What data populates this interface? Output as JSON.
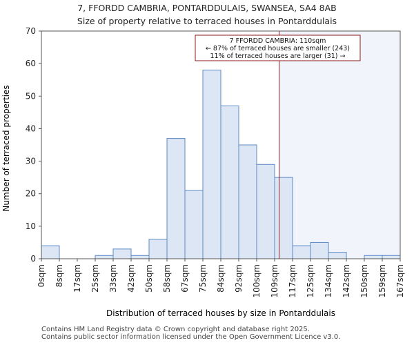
{
  "header": {
    "title": "7, FFORDD CAMBRIA, PONTARDDULAIS, SWANSEA, SA4 8AB",
    "subtitle": "Size of property relative to terraced houses in Pontarddulais"
  },
  "footer": {
    "line1": "Contains HM Land Registry data © Crown copyright and database right 2025.",
    "line2": "Contains public sector information licensed under the Open Government Licence v3.0."
  },
  "chart_data": {
    "type": "bar",
    "title": "7, FFORDD CAMBRIA, PONTARDDULAIS, SWANSEA, SA4 8AB",
    "subtitle": "Size of property relative to terraced houses in Pontarddulais",
    "xlabel": "Distribution of terraced houses by size in Pontarddulais",
    "ylabel": "Number of terraced properties",
    "bin_edges": [
      "0sqm",
      "8sqm",
      "17sqm",
      "25sqm",
      "33sqm",
      "42sqm",
      "50sqm",
      "58sqm",
      "67sqm",
      "75sqm",
      "84sqm",
      "92sqm",
      "100sqm",
      "109sqm",
      "117sqm",
      "125sqm",
      "134sqm",
      "142sqm",
      "150sqm",
      "159sqm",
      "167sqm"
    ],
    "values": [
      4,
      0,
      0,
      1,
      3,
      1,
      6,
      37,
      21,
      58,
      47,
      35,
      29,
      25,
      4,
      5,
      2,
      0,
      1,
      1
    ],
    "ylim": [
      0,
      70
    ],
    "yticks": [
      0,
      10,
      20,
      30,
      40,
      50,
      60,
      70
    ],
    "property_marker": {
      "value_sqm": 110,
      "bin_position": 13.25,
      "annotation": [
        "7 FFORDD CAMBRIA: 110sqm",
        "← 87% of terraced houses are smaller (243)",
        "11% of terraced houses are larger (31) →"
      ]
    },
    "colors": {
      "bar_fill": "#dce6f4",
      "bar_stroke": "#5b8ac6",
      "marker": "#8b1a1a",
      "shade": "#e8eef8"
    }
  }
}
